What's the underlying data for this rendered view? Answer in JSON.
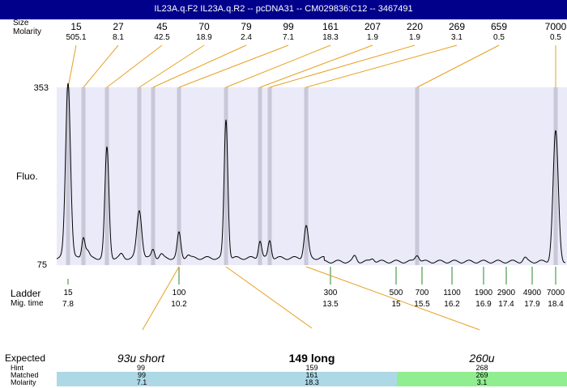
{
  "title": "IL23A.q.F2  IL23A.q.R2 -- pcDNA31 -- CM029836:C12 -- 3467491",
  "labels": {
    "size_row_label": "Size",
    "molarity_row_label": "Molarity",
    "y_axis_label": "Fluo.",
    "y_top_tick": "353",
    "y_bottom_tick": "75",
    "ladder_label": "Ladder",
    "mig_time_label": "Mig. time",
    "expected_label": "Expected",
    "hint_label": "Hint",
    "matched_label": "Matched",
    "molarity_label": "Molarity"
  },
  "colors": {
    "title_bg": "#00008b",
    "plot_bg": "#eaeaf8",
    "band": "#c8c8d8",
    "trace": "#000000",
    "orange_line": "#e8a020",
    "ladder_tick": "#2a8a2a",
    "blue_bar": "#add8e6",
    "green_bar": "#90ee90"
  },
  "chart_data": {
    "type": "line",
    "ylim": [
      75,
      353
    ],
    "peaks": [
      {
        "size": "15",
        "molarity": "505.1"
      },
      {
        "size": "27",
        "molarity": "8.1"
      },
      {
        "size": "45",
        "molarity": "42.5"
      },
      {
        "size": "70",
        "molarity": "18.9"
      },
      {
        "size": "79",
        "molarity": "2.4"
      },
      {
        "size": "99",
        "molarity": "7.1"
      },
      {
        "size": "161",
        "molarity": "18.3"
      },
      {
        "size": "207",
        "molarity": "1.9"
      },
      {
        "size": "220",
        "molarity": "1.9"
      },
      {
        "size": "269",
        "molarity": "3.1"
      },
      {
        "size": "659",
        "molarity": "0.5"
      },
      {
        "size": "7000",
        "molarity": "0.5"
      }
    ],
    "ladder": [
      {
        "size": "15",
        "time": "7.8"
      },
      {
        "size": "100",
        "time": "10.2"
      },
      {
        "size": "300",
        "time": "13.5"
      },
      {
        "size": "500",
        "time": "15"
      },
      {
        "size": "700",
        "time": "15.5"
      },
      {
        "size": "1100",
        "time": "16.2"
      },
      {
        "size": "1900",
        "time": "16.9"
      },
      {
        "size": "2900",
        "time": "17.4"
      },
      {
        "size": "4900",
        "time": "17.9"
      },
      {
        "size": "7000",
        "time": "18.4"
      }
    ],
    "expected": [
      {
        "name": "93u short",
        "hint": "99",
        "matched": "99",
        "molarity": "7.1"
      },
      {
        "name": "149 long",
        "hint": "159",
        "matched": "161",
        "molarity": "18.3"
      },
      {
        "name": "260u",
        "hint": "268",
        "matched": "269",
        "molarity": "3.1"
      }
    ]
  }
}
